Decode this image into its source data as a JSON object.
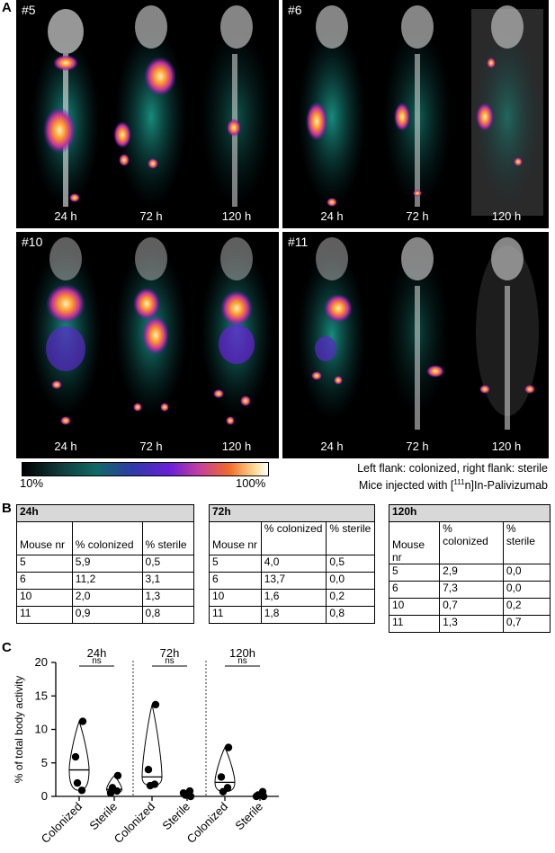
{
  "panel_a": {
    "letter": "A",
    "mice": [
      {
        "id": "#5",
        "times": [
          "24 h",
          "72 h",
          "120 h"
        ]
      },
      {
        "id": "#6",
        "times": [
          "24 h",
          "72 h",
          "120 h"
        ]
      },
      {
        "id": "#10",
        "times": [
          "24 h",
          "72 h",
          "120 h"
        ]
      },
      {
        "id": "#11",
        "times": [
          "24 h",
          "72 h",
          "120 h"
        ]
      }
    ],
    "colorbar": {
      "min_label": "10%",
      "max_label": "100%"
    },
    "legend_line1": "Left flank: colonized, right flank: sterile",
    "legend_line2_pre": "Mice injected with [",
    "legend_line2_sup": "111",
    "legend_line2_post": "n]In-Palivizumab",
    "colors": {
      "hot": "#ff9a2a",
      "mid": "#7a2bd6",
      "low": "#0f7a70",
      "bone": "#d9d9d9"
    }
  },
  "panel_b": {
    "letter": "B",
    "tables": [
      {
        "title": "24h",
        "headers": [
          "Mouse nr",
          "% colonized",
          "% sterile"
        ],
        "rows": [
          [
            "5",
            "5,9",
            "0,5"
          ],
          [
            "6",
            "11,2",
            "3,1"
          ],
          [
            "10",
            "2,0",
            "1,3"
          ],
          [
            "11",
            "0,9",
            "0,8"
          ]
        ]
      },
      {
        "title": "72h",
        "headers": [
          "Mouse nr",
          "% colonized",
          "% sterile"
        ],
        "rows": [
          [
            "5",
            "4,0",
            "0,5"
          ],
          [
            "6",
            "13,7",
            "0,0"
          ],
          [
            "10",
            "1,6",
            "0,2"
          ],
          [
            "11",
            "1,8",
            "0,8"
          ]
        ]
      },
      {
        "title": "120h",
        "headers": [
          "Mouse nr",
          "% colonized",
          "% sterile"
        ],
        "rows": [
          [
            "5",
            "2,9",
            "0,0"
          ],
          [
            "6",
            "7,3",
            "0,0"
          ],
          [
            "10",
            "0,7",
            "0,2"
          ],
          [
            "11",
            "1,3",
            "0,7"
          ]
        ]
      }
    ]
  },
  "panel_c": {
    "letter": "C",
    "chart_data": {
      "type": "scatter",
      "ylabel": "% of total body activity",
      "ylim": [
        0,
        20
      ],
      "yticks": [
        0,
        5,
        10,
        15,
        20
      ],
      "categories": [
        "Colonized",
        "Sterile",
        "Colonized",
        "Sterile",
        "Colonized",
        "Sterile"
      ],
      "groups": [
        {
          "label": "24h",
          "significance": "ns",
          "series": [
            {
              "values": [
                5.9,
                11.2,
                2.0,
                0.9
              ],
              "median": 3.95
            },
            {
              "values": [
                0.5,
                3.1,
                1.3,
                0.8
              ],
              "median": 1.05
            }
          ]
        },
        {
          "label": "72h",
          "significance": "ns",
          "series": [
            {
              "values": [
                4.0,
                13.7,
                1.6,
                1.8
              ],
              "median": 2.9
            },
            {
              "values": [
                0.5,
                0.0,
                0.2,
                0.8
              ],
              "median": 0.35
            }
          ]
        },
        {
          "label": "120h",
          "significance": "ns",
          "series": [
            {
              "values": [
                2.9,
                7.3,
                0.7,
                1.3
              ],
              "median": 2.1
            },
            {
              "values": [
                0.0,
                0.0,
                0.2,
                0.7
              ],
              "median": 0.1
            }
          ]
        }
      ]
    }
  }
}
